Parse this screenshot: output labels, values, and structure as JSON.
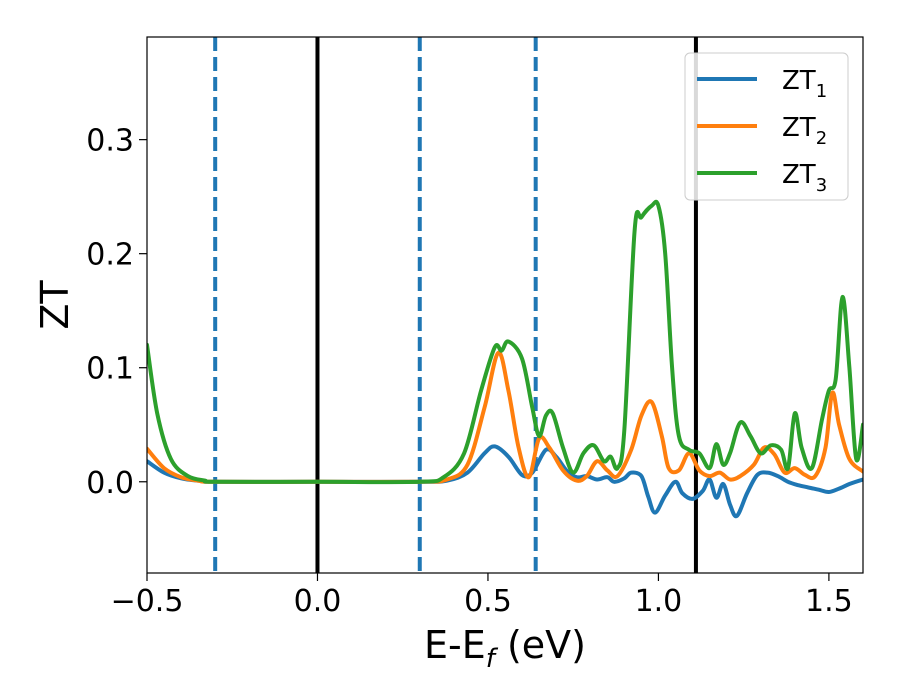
{
  "chart_data": {
    "type": "line",
    "xlabel": "E-E",
    "xlabel_sub": "f",
    "xlabel_unit": " (eV)",
    "ylabel": "ZT",
    "xlim": [
      -0.5,
      1.6
    ],
    "ylim": [
      -0.08,
      0.39
    ],
    "x_ticks": [
      {
        "value": -0.5,
        "label": "−0.5"
      },
      {
        "value": 0.0,
        "label": "0.0"
      },
      {
        "value": 0.5,
        "label": "0.5"
      },
      {
        "value": 1.0,
        "label": "1.0"
      },
      {
        "value": 1.5,
        "label": "1.5"
      }
    ],
    "y_ticks": [
      {
        "value": 0.0,
        "label": "0.0"
      },
      {
        "value": 0.1,
        "label": "0.1"
      },
      {
        "value": 0.2,
        "label": "0.2"
      },
      {
        "value": 0.3,
        "label": "0.3"
      }
    ],
    "grid": false,
    "legend_position": "top-right",
    "vertical_lines": [
      {
        "x": -0.3,
        "style": "dashed",
        "color": "#1f77b4"
      },
      {
        "x": 0.0,
        "style": "solid",
        "color": "#000000"
      },
      {
        "x": 0.3,
        "style": "dashed",
        "color": "#1f77b4"
      },
      {
        "x": 0.64,
        "style": "dashed",
        "color": "#1f77b4"
      },
      {
        "x": 1.11,
        "style": "solid",
        "color": "#000000"
      }
    ],
    "series": [
      {
        "name": "ZT",
        "subscript": "1",
        "color": "#1f77b4",
        "points": [
          [
            -0.5,
            0.018
          ],
          [
            -0.45,
            0.008
          ],
          [
            -0.4,
            0.003
          ],
          [
            -0.35,
            0.001
          ],
          [
            -0.3,
            0.0
          ],
          [
            0.0,
            0.0
          ],
          [
            0.3,
            0.0
          ],
          [
            0.38,
            0.001
          ],
          [
            0.44,
            0.008
          ],
          [
            0.49,
            0.025
          ],
          [
            0.52,
            0.031
          ],
          [
            0.56,
            0.022
          ],
          [
            0.6,
            0.006
          ],
          [
            0.63,
            0.008
          ],
          [
            0.67,
            0.028
          ],
          [
            0.7,
            0.022
          ],
          [
            0.73,
            0.01
          ],
          [
            0.76,
            0.004
          ],
          [
            0.79,
            0.005
          ],
          [
            0.82,
            0.002
          ],
          [
            0.85,
            0.004
          ],
          [
            0.87,
            0.0
          ],
          [
            0.9,
            0.003
          ],
          [
            0.92,
            0.008
          ],
          [
            0.95,
            0.005
          ],
          [
            0.97,
            -0.013
          ],
          [
            0.99,
            -0.027
          ],
          [
            1.02,
            -0.012
          ],
          [
            1.05,
            0.0
          ],
          [
            1.07,
            -0.01
          ],
          [
            1.1,
            -0.015
          ],
          [
            1.13,
            -0.008
          ],
          [
            1.15,
            0.002
          ],
          [
            1.17,
            -0.014
          ],
          [
            1.19,
            -0.002
          ],
          [
            1.21,
            -0.02
          ],
          [
            1.23,
            -0.03
          ],
          [
            1.26,
            -0.01
          ],
          [
            1.29,
            0.006
          ],
          [
            1.32,
            0.008
          ],
          [
            1.35,
            0.005
          ],
          [
            1.38,
            0.0
          ],
          [
            1.41,
            -0.003
          ],
          [
            1.44,
            -0.005
          ],
          [
            1.47,
            -0.007
          ],
          [
            1.5,
            -0.009
          ],
          [
            1.53,
            -0.006
          ],
          [
            1.56,
            -0.002
          ],
          [
            1.6,
            0.002
          ]
        ]
      },
      {
        "name": "ZT",
        "subscript": "2",
        "color": "#ff7f0e",
        "points": [
          [
            -0.5,
            0.029
          ],
          [
            -0.45,
            0.012
          ],
          [
            -0.4,
            0.004
          ],
          [
            -0.35,
            0.001
          ],
          [
            -0.3,
            0.0
          ],
          [
            0.0,
            0.0
          ],
          [
            0.3,
            0.0
          ],
          [
            0.38,
            0.002
          ],
          [
            0.44,
            0.015
          ],
          [
            0.49,
            0.065
          ],
          [
            0.53,
            0.113
          ],
          [
            0.56,
            0.08
          ],
          [
            0.59,
            0.03
          ],
          [
            0.62,
            0.004
          ],
          [
            0.65,
            0.038
          ],
          [
            0.68,
            0.03
          ],
          [
            0.72,
            0.01
          ],
          [
            0.76,
            0.001
          ],
          [
            0.79,
            0.005
          ],
          [
            0.82,
            0.018
          ],
          [
            0.85,
            0.01
          ],
          [
            0.88,
            0.005
          ],
          [
            0.92,
            0.028
          ],
          [
            0.95,
            0.058
          ],
          [
            0.98,
            0.07
          ],
          [
            1.01,
            0.04
          ],
          [
            1.03,
            0.012
          ],
          [
            1.06,
            0.01
          ],
          [
            1.09,
            0.025
          ],
          [
            1.12,
            0.01
          ],
          [
            1.15,
            0.005
          ],
          [
            1.18,
            0.008
          ],
          [
            1.21,
            0.002
          ],
          [
            1.24,
            0.005
          ],
          [
            1.28,
            0.015
          ],
          [
            1.31,
            0.03
          ],
          [
            1.34,
            0.024
          ],
          [
            1.37,
            0.008
          ],
          [
            1.4,
            0.012
          ],
          [
            1.43,
            0.006
          ],
          [
            1.46,
            0.005
          ],
          [
            1.49,
            0.03
          ],
          [
            1.51,
            0.078
          ],
          [
            1.53,
            0.05
          ],
          [
            1.56,
            0.02
          ],
          [
            1.6,
            0.009
          ]
        ]
      },
      {
        "name": "ZT",
        "subscript": "3",
        "color": "#2ca02c",
        "points": [
          [
            -0.5,
            0.12
          ],
          [
            -0.47,
            0.06
          ],
          [
            -0.43,
            0.02
          ],
          [
            -0.38,
            0.005
          ],
          [
            -0.33,
            0.001
          ],
          [
            -0.3,
            0.0
          ],
          [
            0.0,
            0.0
          ],
          [
            0.3,
            0.0
          ],
          [
            0.37,
            0.004
          ],
          [
            0.43,
            0.025
          ],
          [
            0.48,
            0.08
          ],
          [
            0.52,
            0.118
          ],
          [
            0.54,
            0.115
          ],
          [
            0.56,
            0.123
          ],
          [
            0.6,
            0.108
          ],
          [
            0.63,
            0.065
          ],
          [
            0.65,
            0.04
          ],
          [
            0.67,
            0.058
          ],
          [
            0.69,
            0.06
          ],
          [
            0.72,
            0.03
          ],
          [
            0.75,
            0.008
          ],
          [
            0.78,
            0.025
          ],
          [
            0.81,
            0.032
          ],
          [
            0.84,
            0.018
          ],
          [
            0.86,
            0.022
          ],
          [
            0.88,
            0.012
          ],
          [
            0.9,
            0.045
          ],
          [
            0.93,
            0.22
          ],
          [
            0.95,
            0.232
          ],
          [
            0.98,
            0.242
          ],
          [
            1.0,
            0.242
          ],
          [
            1.02,
            0.2
          ],
          [
            1.04,
            0.1
          ],
          [
            1.06,
            0.04
          ],
          [
            1.09,
            0.028
          ],
          [
            1.12,
            0.025
          ],
          [
            1.15,
            0.012
          ],
          [
            1.17,
            0.033
          ],
          [
            1.19,
            0.015
          ],
          [
            1.21,
            0.025
          ],
          [
            1.24,
            0.052
          ],
          [
            1.27,
            0.04
          ],
          [
            1.3,
            0.025
          ],
          [
            1.33,
            0.032
          ],
          [
            1.36,
            0.028
          ],
          [
            1.38,
            0.012
          ],
          [
            1.4,
            0.06
          ],
          [
            1.42,
            0.03
          ],
          [
            1.45,
            0.012
          ],
          [
            1.48,
            0.055
          ],
          [
            1.5,
            0.08
          ],
          [
            1.52,
            0.09
          ],
          [
            1.54,
            0.162
          ],
          [
            1.56,
            0.1
          ],
          [
            1.58,
            0.02
          ],
          [
            1.6,
            0.05
          ]
        ]
      }
    ]
  }
}
